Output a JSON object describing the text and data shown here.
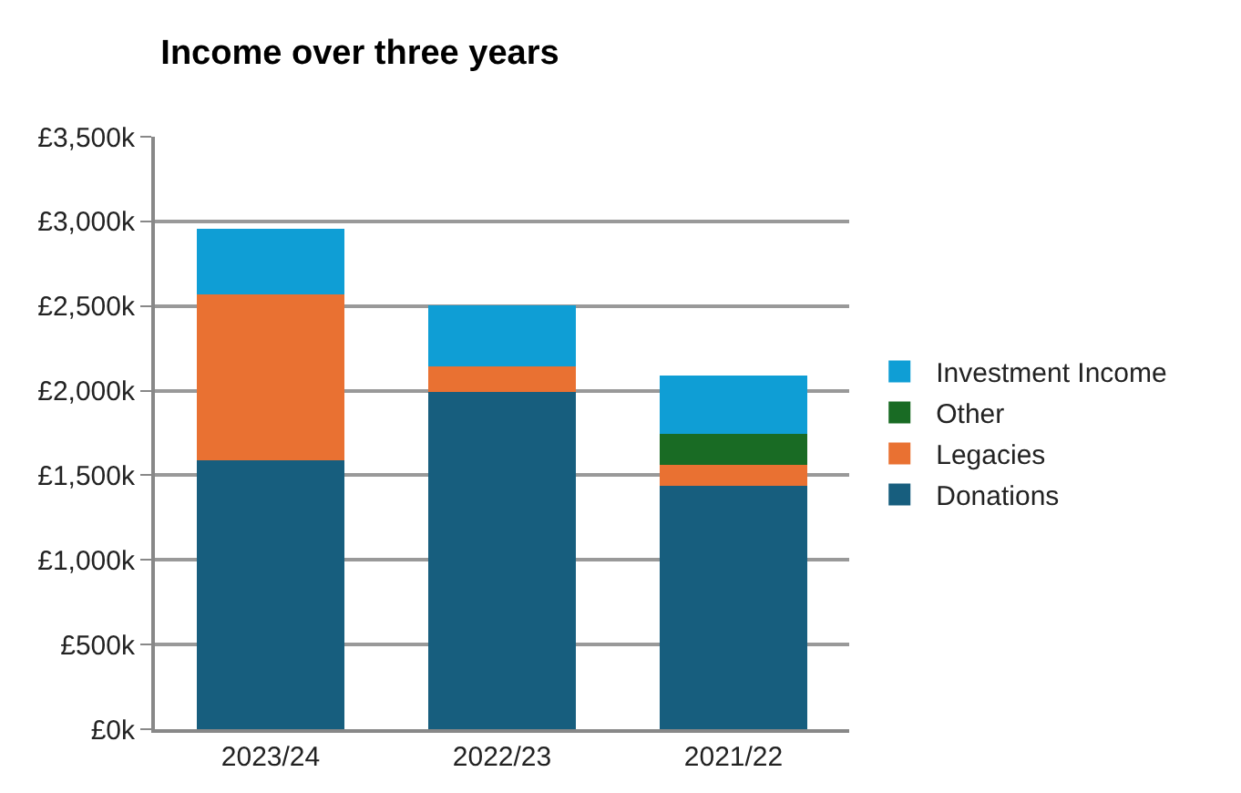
{
  "chart_data": {
    "type": "bar",
    "title": "Income over three years",
    "stacked": true,
    "categories": [
      "2023/24",
      "2022/23",
      "2021/22"
    ],
    "series": [
      {
        "name": "Donations",
        "color": "#175e7e",
        "values": [
          1590,
          1990,
          1440
        ]
      },
      {
        "name": "Legacies",
        "color": "#e97132",
        "values": [
          980,
          155,
          120
        ]
      },
      {
        "name": "Other",
        "color": "#196b24",
        "values": [
          0,
          0,
          185
        ]
      },
      {
        "name": "Investment Income",
        "color": "#0f9ed5",
        "values": [
          385,
          360,
          345
        ]
      }
    ],
    "ylim": [
      0,
      3500
    ],
    "yticks": [
      {
        "value": 0,
        "label": "£0k"
      },
      {
        "value": 500,
        "label": "£500k"
      },
      {
        "value": 1000,
        "label": "£1,000k"
      },
      {
        "value": 1500,
        "label": "£1,500k"
      },
      {
        "value": 2000,
        "label": "£2,000k"
      },
      {
        "value": 2500,
        "label": "£2,500k"
      },
      {
        "value": 3000,
        "label": "£3,000k"
      },
      {
        "value": 3500,
        "label": "£3,500k"
      }
    ],
    "grid": "y",
    "legend": "right"
  }
}
